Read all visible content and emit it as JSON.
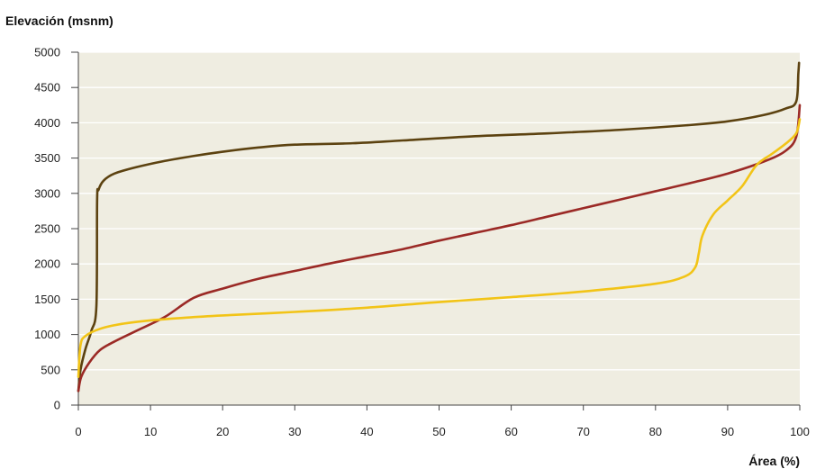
{
  "chart_data": {
    "type": "line",
    "title": "",
    "ylabel": "Elevación (msnm)",
    "xlabel": "Área (%)",
    "xlim": [
      0,
      100
    ],
    "ylim": [
      0,
      5000
    ],
    "xticks": [
      0,
      10,
      20,
      30,
      40,
      50,
      60,
      70,
      80,
      90,
      100
    ],
    "yticks": [
      0,
      500,
      1000,
      1500,
      2000,
      2500,
      3000,
      3500,
      4000,
      4500,
      5000
    ],
    "grid": "horizontal",
    "plot_background": "#efede1",
    "gridline_color": "#ffffff",
    "legend": "none",
    "series": [
      {
        "color": "#5c4210",
        "points": [
          [
            0,
            200
          ],
          [
            0.3,
            500
          ],
          [
            1,
            800
          ],
          [
            1.8,
            1050
          ],
          [
            2.5,
            1400
          ],
          [
            2.6,
            2900
          ],
          [
            2.8,
            3050
          ],
          [
            3.5,
            3180
          ],
          [
            5,
            3280
          ],
          [
            8,
            3370
          ],
          [
            12,
            3460
          ],
          [
            16,
            3530
          ],
          [
            20,
            3590
          ],
          [
            25,
            3650
          ],
          [
            30,
            3690
          ],
          [
            38,
            3710
          ],
          [
            45,
            3750
          ],
          [
            55,
            3810
          ],
          [
            65,
            3850
          ],
          [
            75,
            3900
          ],
          [
            85,
            3970
          ],
          [
            90,
            4020
          ],
          [
            95,
            4110
          ],
          [
            98,
            4200
          ],
          [
            99.5,
            4300
          ],
          [
            99.8,
            4700
          ],
          [
            99.9,
            4850
          ]
        ]
      },
      {
        "color": "#9b2a26",
        "points": [
          [
            0,
            200
          ],
          [
            0.4,
            400
          ],
          [
            1.5,
            600
          ],
          [
            3,
            780
          ],
          [
            5,
            900
          ],
          [
            8,
            1050
          ],
          [
            12,
            1250
          ],
          [
            16,
            1520
          ],
          [
            20,
            1650
          ],
          [
            25,
            1790
          ],
          [
            30,
            1900
          ],
          [
            35,
            2010
          ],
          [
            40,
            2110
          ],
          [
            45,
            2210
          ],
          [
            50,
            2330
          ],
          [
            55,
            2440
          ],
          [
            60,
            2550
          ],
          [
            65,
            2670
          ],
          [
            70,
            2790
          ],
          [
            75,
            2910
          ],
          [
            80,
            3030
          ],
          [
            85,
            3150
          ],
          [
            90,
            3280
          ],
          [
            95,
            3450
          ],
          [
            98,
            3600
          ],
          [
            99.5,
            3800
          ],
          [
            100,
            4250
          ]
        ]
      },
      {
        "color": "#f2c417",
        "points": [
          [
            0,
            400
          ],
          [
            0.3,
            850
          ],
          [
            1,
            980
          ],
          [
            3,
            1080
          ],
          [
            6,
            1150
          ],
          [
            10,
            1200
          ],
          [
            15,
            1240
          ],
          [
            20,
            1270
          ],
          [
            30,
            1320
          ],
          [
            40,
            1380
          ],
          [
            50,
            1460
          ],
          [
            60,
            1530
          ],
          [
            70,
            1610
          ],
          [
            80,
            1720
          ],
          [
            84,
            1820
          ],
          [
            85.5,
            1950
          ],
          [
            86,
            2150
          ],
          [
            86.5,
            2400
          ],
          [
            88,
            2700
          ],
          [
            90,
            2900
          ],
          [
            92,
            3100
          ],
          [
            94,
            3400
          ],
          [
            96,
            3550
          ],
          [
            98,
            3700
          ],
          [
            99.5,
            3850
          ],
          [
            100,
            4050
          ]
        ]
      }
    ]
  }
}
